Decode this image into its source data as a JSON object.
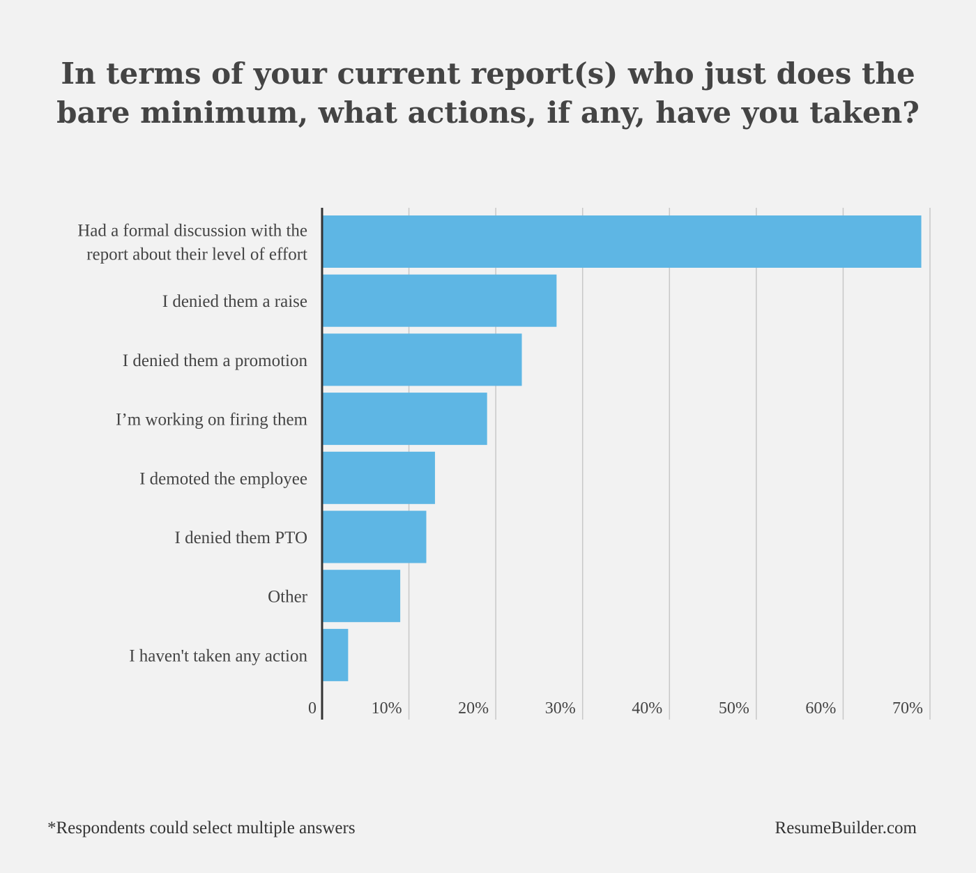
{
  "title": "In terms of your current report(s) who just does the bare minimum, what actions, if any, have you taken?",
  "footnote": "*Respondents could select multiple answers",
  "source": "ResumeBuilder.com",
  "colors": {
    "bar": "#5eb6e4",
    "background": "#f2f2f2",
    "gridline": "#c8c8c8",
    "axis": "#333333",
    "text": "#444444"
  },
  "chart_data": {
    "type": "bar",
    "orientation": "horizontal",
    "categories": [
      "Had a formal discussion with the report about their level of effort",
      "I denied them a raise",
      "I denied them a promotion",
      "I’m working on firing them",
      "I demoted the employee",
      "I denied them PTO",
      "Other",
      "I haven't taken any action"
    ],
    "category_label_lines": [
      [
        "Had a formal discussion with the",
        "report about their level of effort"
      ],
      [
        "I denied them a raise"
      ],
      [
        "I denied them a promotion"
      ],
      [
        "I’m working on firing them"
      ],
      [
        "I demoted the employee"
      ],
      [
        "I denied them PTO"
      ],
      [
        "Other"
      ],
      [
        "I haven't taken any action"
      ]
    ],
    "values": [
      69,
      27,
      23,
      19,
      13,
      12,
      9,
      3
    ],
    "xlim": [
      0,
      70
    ],
    "ticks": [
      0,
      10,
      20,
      30,
      40,
      50,
      60,
      70
    ],
    "tick_labels": [
      "0",
      "10%",
      "20%",
      "30%",
      "40%",
      "50%",
      "60%",
      "70%"
    ],
    "grid": true,
    "legend": "none"
  }
}
